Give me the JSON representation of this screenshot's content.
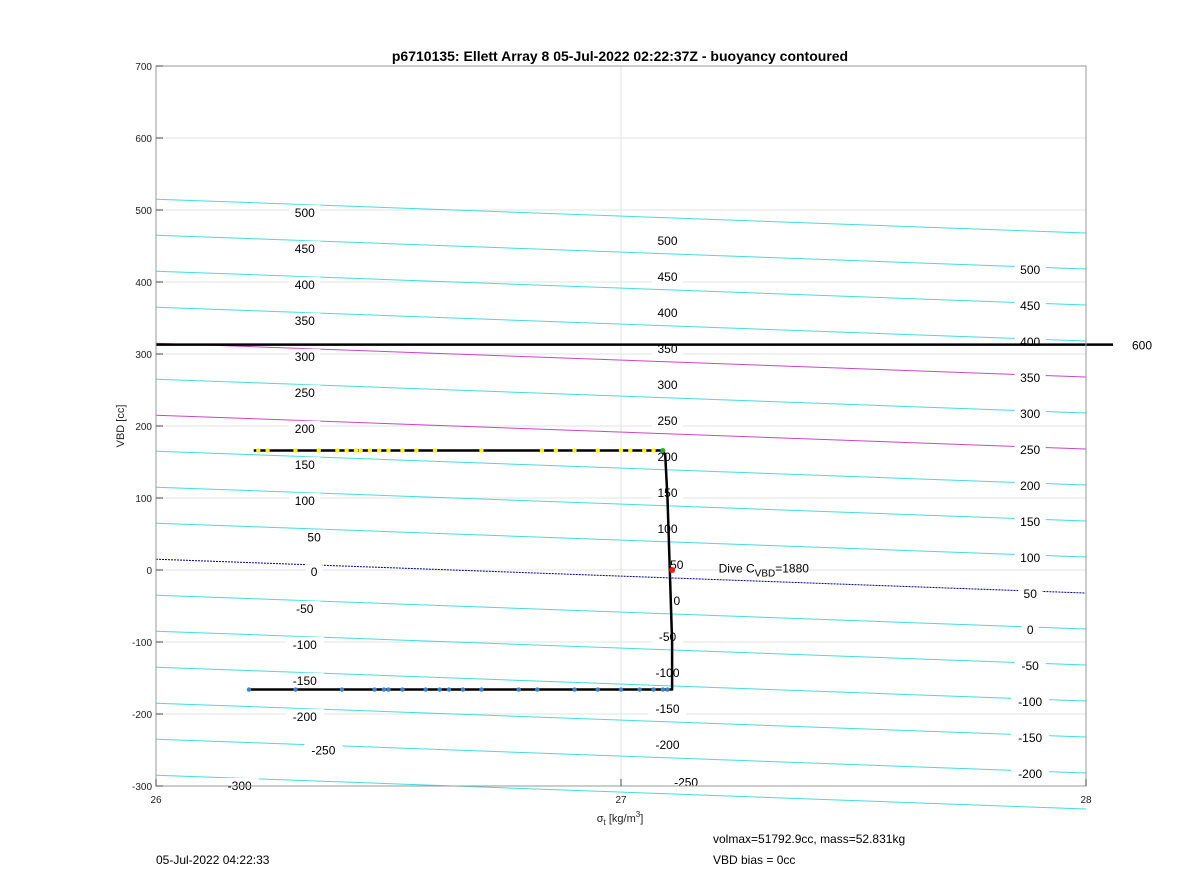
{
  "chart_data": {
    "type": "line",
    "title": "p6710135: Ellett Array 8 05-Jul-2022 02:22:37Z - buoyancy contoured",
    "xlabel": "σ_t [kg/m³]",
    "xlabel_parts": {
      "symbol": "σ",
      "sub": "t",
      "unit_pre": "[kg/m",
      "unit_sup": "3",
      "unit_post": "]"
    },
    "ylabel": "VBD [cc]",
    "xlim": [
      26,
      28
    ],
    "ylim": [
      -300,
      700
    ],
    "xticks": [
      "26",
      "27",
      "28"
    ],
    "yticks": [
      "-300",
      "-200",
      "-100",
      "0",
      "100",
      "200",
      "300",
      "400",
      "500",
      "600",
      "700"
    ],
    "grid": true,
    "buoyancy_contours": {
      "intercept_at_x26": 15,
      "slope_per_unit_x": -23.5,
      "levels": [
        -300,
        -250,
        -200,
        -150,
        -100,
        -50,
        0,
        50,
        100,
        150,
        200,
        250,
        300,
        350,
        400,
        450,
        500
      ],
      "highlight_levels": {
        "0": "#00008b",
        "200": "#cc44cc",
        "300": "#cc44cc"
      },
      "default_color": "#40dede"
    },
    "contour_labels": [
      {
        "text": "-300",
        "x": 26.18,
        "y": -300
      },
      {
        "text": "-250",
        "x": 26.36,
        "y": -251
      },
      {
        "text": "-200",
        "x": 26.32,
        "y": -204
      },
      {
        "text": "-150",
        "x": 26.32,
        "y": -154
      },
      {
        "text": "-100",
        "x": 26.32,
        "y": -104
      },
      {
        "text": "-50",
        "x": 26.32,
        "y": -54
      },
      {
        "text": "0",
        "x": 26.34,
        "y": -3
      },
      {
        "text": "50",
        "x": 26.34,
        "y": 45
      },
      {
        "text": "100",
        "x": 26.32,
        "y": 96
      },
      {
        "text": "150",
        "x": 26.32,
        "y": 146
      },
      {
        "text": "200",
        "x": 26.32,
        "y": 196
      },
      {
        "text": "250",
        "x": 26.32,
        "y": 246
      },
      {
        "text": "300",
        "x": 26.32,
        "y": 296
      },
      {
        "text": "350",
        "x": 26.32,
        "y": 346
      },
      {
        "text": "400",
        "x": 26.32,
        "y": 396
      },
      {
        "text": "450",
        "x": 26.32,
        "y": 446
      },
      {
        "text": "500",
        "x": 26.32,
        "y": 496
      },
      {
        "text": "-250",
        "x": 27.14,
        "y": -295
      },
      {
        "text": "-200",
        "x": 27.1,
        "y": -243
      },
      {
        "text": "-150",
        "x": 27.1,
        "y": -193
      },
      {
        "text": "-100",
        "x": 27.1,
        "y": -143
      },
      {
        "text": "-50",
        "x": 27.1,
        "y": -93
      },
      {
        "text": "0",
        "x": 27.12,
        "y": -43
      },
      {
        "text": "50",
        "x": 27.12,
        "y": 7
      },
      {
        "text": "100",
        "x": 27.1,
        "y": 57
      },
      {
        "text": "150",
        "x": 27.1,
        "y": 107
      },
      {
        "text": "200",
        "x": 27.1,
        "y": 157
      },
      {
        "text": "250",
        "x": 27.1,
        "y": 207
      },
      {
        "text": "300",
        "x": 27.1,
        "y": 257
      },
      {
        "text": "350",
        "x": 27.1,
        "y": 307
      },
      {
        "text": "400",
        "x": 27.1,
        "y": 357
      },
      {
        "text": "450",
        "x": 27.1,
        "y": 407
      },
      {
        "text": "500",
        "x": 27.1,
        "y": 457
      },
      {
        "text": "-200",
        "x": 27.88,
        "y": -283
      },
      {
        "text": "-150",
        "x": 27.88,
        "y": -233
      },
      {
        "text": "-100",
        "x": 27.88,
        "y": -183
      },
      {
        "text": "-50",
        "x": 27.88,
        "y": -133
      },
      {
        "text": "0",
        "x": 27.88,
        "y": -83
      },
      {
        "text": "50",
        "x": 27.88,
        "y": -33
      },
      {
        "text": "100",
        "x": 27.88,
        "y": 17
      },
      {
        "text": "150",
        "x": 27.88,
        "y": 67
      },
      {
        "text": "200",
        "x": 27.88,
        "y": 117
      },
      {
        "text": "250",
        "x": 27.88,
        "y": 167
      },
      {
        "text": "300",
        "x": 27.88,
        "y": 217
      },
      {
        "text": "350",
        "x": 27.88,
        "y": 267
      },
      {
        "text": "400",
        "x": 27.88,
        "y": 317
      },
      {
        "text": "450",
        "x": 27.88,
        "y": 367
      },
      {
        "text": "500",
        "x": 27.88,
        "y": 417
      }
    ],
    "reference_line": {
      "y": 313,
      "label": "600",
      "color": "#000000"
    },
    "dive_track": [
      [
        26.21,
        166
      ],
      [
        26.5,
        166
      ],
      [
        27.0,
        166
      ],
      [
        27.09,
        166
      ],
      [
        27.095,
        160
      ],
      [
        27.1,
        100
      ],
      [
        27.105,
        0
      ],
      [
        27.11,
        -100
      ],
      [
        27.11,
        -166
      ],
      [
        27.0,
        -166
      ],
      [
        26.7,
        -166
      ],
      [
        26.4,
        -166
      ],
      [
        26.2,
        -166
      ]
    ],
    "descent_points": [
      26.22,
      26.24,
      26.3,
      26.35,
      26.39,
      26.41,
      26.43,
      26.44,
      26.46,
      26.48,
      26.5,
      26.53,
      26.56,
      26.6,
      26.7,
      26.83,
      26.86,
      26.9,
      26.95,
      27.0,
      27.02,
      27.05,
      27.07
    ],
    "descent_y": 166,
    "descent_color": "#ffee22",
    "climb_points": [
      26.2,
      26.3,
      26.4,
      26.47,
      26.49,
      26.5,
      26.53,
      26.58,
      26.61,
      26.63,
      26.66,
      26.7,
      26.78,
      26.82,
      26.9,
      26.95,
      27.0,
      27.04,
      27.07,
      27.09,
      27.1
    ],
    "climb_y": -166,
    "climb_color": "#3f83c8",
    "turn_point": {
      "x": 27.09,
      "y": 166,
      "color": "#33aa33"
    },
    "dive_marker": {
      "x": 27.11,
      "y": 0,
      "color": "#e02020"
    },
    "dive_annotation": {
      "prefix": "Dive C",
      "sub": "VBD",
      "suffix": "=1880",
      "x": 27.21,
      "y": 2
    }
  },
  "footer": {
    "timestamp": "05-Jul-2022 04:22:33",
    "volmax": "volmax=51792.9cc, mass=52.831kg",
    "vbd_bias": "VBD bias = 0cc"
  }
}
